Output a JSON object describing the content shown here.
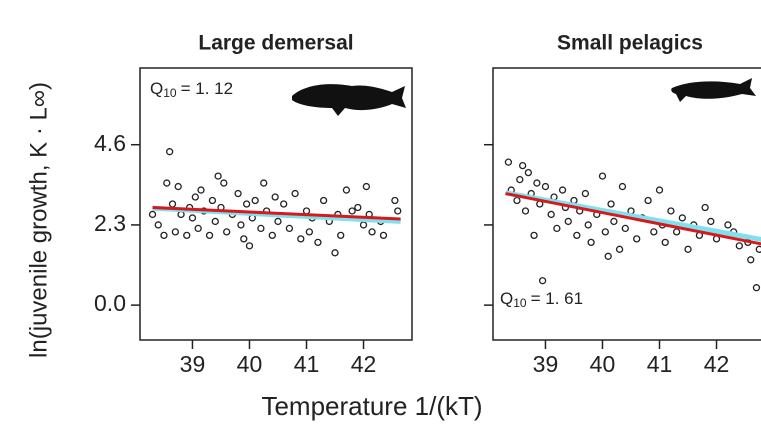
{
  "chart_data": [
    {
      "type": "scatter",
      "title": "Large demersal",
      "ylabel": "ln(juvenile growth, K · L∞)",
      "xlabel": "Temperature 1/(kT)",
      "annotation": {
        "symbol": "Q",
        "subscript": "10",
        "text": "= 1. 12"
      },
      "x": [
        38.3,
        38.4,
        38.5,
        38.55,
        38.6,
        38.65,
        38.7,
        38.75,
        38.8,
        38.9,
        38.95,
        39.0,
        39.05,
        39.1,
        39.15,
        39.2,
        39.3,
        39.35,
        39.4,
        39.45,
        39.5,
        39.55,
        39.6,
        39.7,
        39.8,
        39.85,
        39.9,
        39.95,
        40.0,
        40.05,
        40.1,
        40.2,
        40.25,
        40.3,
        40.4,
        40.45,
        40.5,
        40.6,
        40.7,
        40.8,
        40.9,
        41.0,
        41.05,
        41.1,
        41.2,
        41.3,
        41.4,
        41.5,
        41.55,
        41.6,
        41.7,
        41.8,
        41.9,
        42.0,
        42.05,
        42.1,
        42.15,
        42.3,
        42.35,
        42.55,
        42.6
      ],
      "values": [
        2.6,
        2.3,
        2.0,
        3.5,
        4.4,
        2.9,
        2.1,
        3.4,
        2.6,
        2.0,
        2.8,
        2.5,
        3.1,
        2.2,
        3.3,
        2.7,
        2.0,
        3.0,
        2.4,
        3.7,
        2.8,
        3.5,
        2.1,
        2.6,
        3.2,
        2.3,
        1.9,
        2.9,
        1.7,
        2.5,
        3.0,
        2.2,
        3.5,
        2.7,
        2.0,
        3.1,
        2.4,
        2.9,
        2.2,
        3.2,
        1.9,
        2.7,
        2.1,
        2.5,
        1.8,
        3.0,
        2.4,
        1.5,
        2.6,
        2.0,
        3.3,
        2.7,
        2.8,
        2.3,
        3.4,
        2.6,
        2.1,
        2.4,
        2.0,
        3.0,
        2.7
      ],
      "lines": [
        {
          "color": "#7fe0ee",
          "x": [
            38.3,
            42.65
          ],
          "values": [
            2.78,
            2.4
          ]
        },
        {
          "color": "#d7191c",
          "x": [
            38.3,
            42.65
          ],
          "values": [
            2.8,
            2.47
          ]
        }
      ],
      "xlim": [
        38.08,
        42.85
      ],
      "ylim": [
        -1.0,
        6.8
      ],
      "xticks": [
        39,
        40,
        41,
        42
      ],
      "yticks": [
        {
          "value": 0,
          "label": "0.0"
        },
        2.3,
        4.6
      ]
    },
    {
      "type": "scatter",
      "title": "Small pelagics",
      "annotation": {
        "symbol": "Q",
        "subscript": "10",
        "text": "= 1. 61"
      },
      "x": [
        38.35,
        38.4,
        38.5,
        38.55,
        38.6,
        38.65,
        38.7,
        38.75,
        38.8,
        38.85,
        38.9,
        38.95,
        39.0,
        39.1,
        39.15,
        39.2,
        39.3,
        39.35,
        39.4,
        39.5,
        39.55,
        39.6,
        39.7,
        39.75,
        39.8,
        39.9,
        40.0,
        40.05,
        40.1,
        40.15,
        40.2,
        40.3,
        40.35,
        40.4,
        40.5,
        40.6,
        40.7,
        40.8,
        40.9,
        41.0,
        41.05,
        41.1,
        41.2,
        41.3,
        41.4,
        41.5,
        41.6,
        41.7,
        41.8,
        41.9,
        42.0,
        42.2,
        42.3,
        42.4,
        42.55,
        42.6,
        42.7,
        42.75
      ],
      "values": [
        4.1,
        3.3,
        3.0,
        3.6,
        4.0,
        2.7,
        3.8,
        3.2,
        2.0,
        3.5,
        2.9,
        0.7,
        3.4,
        2.6,
        3.1,
        2.2,
        3.3,
        2.8,
        2.4,
        3.0,
        2.0,
        2.7,
        3.2,
        2.3,
        1.8,
        2.6,
        3.7,
        2.1,
        1.4,
        2.9,
        2.4,
        1.6,
        3.4,
        2.2,
        2.7,
        1.9,
        2.5,
        3.0,
        2.1,
        3.3,
        2.3,
        1.8,
        2.7,
        2.1,
        2.5,
        1.6,
        2.3,
        2.0,
        2.8,
        2.4,
        1.9,
        2.3,
        2.1,
        1.7,
        1.8,
        1.3,
        0.5,
        1.6
      ],
      "lines": [
        {
          "color": "#7fe0ee",
          "x": [
            38.3,
            42.8
          ],
          "values": [
            3.22,
            1.88
          ]
        },
        {
          "color": "#d7191c",
          "x": [
            38.3,
            42.8
          ],
          "values": [
            3.2,
            1.75
          ]
        }
      ],
      "xlim": [
        38.08,
        42.85
      ],
      "ylim": [
        -1.0,
        6.8
      ],
      "xticks": [
        39,
        40,
        41,
        42
      ],
      "yticks": [
        {
          "value": 0,
          "label": "0.0"
        },
        2.3,
        4.6
      ]
    }
  ]
}
